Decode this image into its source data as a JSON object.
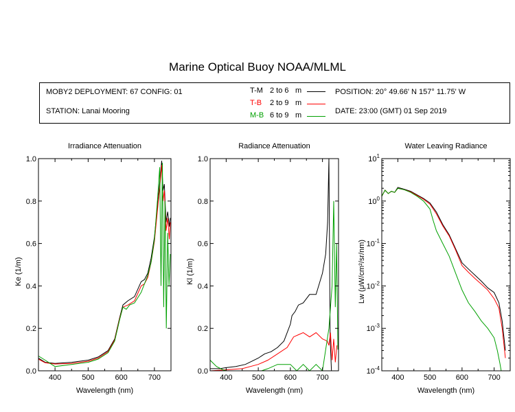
{
  "title": "Marine Optical Buoy NOAA/MLML",
  "info": {
    "deployment": "MOBY2 DEPLOYMENT: 67 CONFIG: 01",
    "station": "STATION: Lanai Mooring",
    "position": "POSITION: 20° 49.66' N   157° 11.75' W",
    "date": "DATE: 23:00 (GMT) 01 Sep 2019"
  },
  "legend": [
    {
      "code": "T-M",
      "range": "2 to 6",
      "unit": "m",
      "color": "#000000"
    },
    {
      "code": "T-B",
      "range": "2 to 9",
      "unit": "m",
      "color": "#ff0000"
    },
    {
      "code": "M-B",
      "range": "6 to 9",
      "unit": "m",
      "color": "#00a000"
    }
  ],
  "chart_data": [
    {
      "type": "line",
      "title": "Irradiance Attenuation",
      "xlabel": "Wavelength (nm)",
      "ylabel": "Ke  (1/m)",
      "xlim": [
        350,
        750
      ],
      "ylim": [
        0,
        1.0
      ],
      "x_ticks": [
        400,
        500,
        600,
        700
      ],
      "y_ticks": [
        "0.0",
        "0.2",
        "0.4",
        "0.6",
        "0.8",
        "1.0"
      ],
      "series": [
        {
          "name": "T-M",
          "color": "#000000",
          "x": [
            350,
            370,
            400,
            450,
            500,
            530,
            560,
            580,
            595,
            605,
            620,
            640,
            660,
            670,
            680,
            690,
            700,
            710,
            718,
            722,
            726,
            730,
            735,
            740,
            745,
            748
          ],
          "y": [
            0.06,
            0.04,
            0.035,
            0.04,
            0.05,
            0.065,
            0.095,
            0.15,
            0.25,
            0.31,
            0.33,
            0.35,
            0.42,
            0.43,
            0.46,
            0.53,
            0.63,
            0.79,
            0.92,
            0.99,
            0.85,
            0.88,
            0.7,
            0.75,
            0.68,
            0.72
          ]
        },
        {
          "name": "T-B",
          "color": "#ff0000",
          "x": [
            350,
            370,
            400,
            450,
            500,
            530,
            560,
            580,
            595,
            605,
            620,
            640,
            660,
            670,
            680,
            690,
            700,
            710,
            718,
            722,
            726,
            730,
            735,
            740,
            745,
            748
          ],
          "y": [
            0.055,
            0.038,
            0.032,
            0.035,
            0.045,
            0.06,
            0.09,
            0.145,
            0.245,
            0.3,
            0.31,
            0.33,
            0.4,
            0.41,
            0.44,
            0.51,
            0.61,
            0.77,
            0.9,
            0.97,
            0.8,
            0.85,
            0.66,
            0.72,
            0.62,
            0.7
          ]
        },
        {
          "name": "M-B",
          "color": "#00a000",
          "x": [
            350,
            370,
            400,
            450,
            500,
            530,
            560,
            580,
            595,
            605,
            615,
            625,
            640,
            660,
            670,
            680,
            690,
            700,
            710,
            716,
            720,
            724,
            728,
            732,
            736,
            740,
            744,
            748
          ],
          "y": [
            0.07,
            0.05,
            0.02,
            0.03,
            0.04,
            0.055,
            0.085,
            0.14,
            0.24,
            0.3,
            0.29,
            0.31,
            0.32,
            0.37,
            0.41,
            0.45,
            0.51,
            0.62,
            0.82,
            0.96,
            0.4,
            0.98,
            0.3,
            0.8,
            0.2,
            0.65,
            0.4,
            0.55
          ]
        }
      ]
    },
    {
      "type": "line",
      "title": "Radiance Attenuation",
      "xlabel": "Wavelength (nm)",
      "ylabel": "Kl  (1/m)",
      "xlim": [
        350,
        750
      ],
      "ylim": [
        0,
        1.0
      ],
      "x_ticks": [
        400,
        500,
        600,
        700
      ],
      "y_ticks": [
        "0.0",
        "0.2",
        "0.4",
        "0.6",
        "0.8",
        "1.0"
      ],
      "series": [
        {
          "name": "T-M",
          "color": "#000000",
          "x": [
            350,
            380,
            400,
            430,
            460,
            480,
            500,
            520,
            540,
            560,
            580,
            600,
            605,
            615,
            625,
            640,
            660,
            680,
            700,
            710,
            716,
            720,
            724,
            728
          ],
          "y": [
            0.01,
            0.01,
            0.015,
            0.02,
            0.03,
            0.045,
            0.06,
            0.08,
            0.09,
            0.11,
            0.14,
            0.22,
            0.26,
            0.28,
            0.31,
            0.32,
            0.36,
            0.36,
            0.46,
            0.55,
            0.7,
            1.0,
            0.15,
            0.0
          ]
        },
        {
          "name": "T-B",
          "color": "#ff0000",
          "x": [
            350,
            400,
            450,
            500,
            530,
            560,
            590,
            610,
            625,
            640,
            660,
            680,
            700,
            715,
            720,
            725,
            730,
            735,
            740,
            745
          ],
          "y": [
            0.0,
            0.005,
            0.01,
            0.03,
            0.05,
            0.08,
            0.11,
            0.16,
            0.17,
            0.18,
            0.16,
            0.18,
            0.15,
            0.14,
            0.12,
            0.18,
            0.05,
            0.15,
            0.04,
            0.12
          ]
        },
        {
          "name": "M-B",
          "color": "#00a000",
          "x": [
            350,
            370,
            390,
            400,
            510,
            530,
            560,
            600,
            620,
            640,
            660,
            680,
            700,
            720,
            730,
            735,
            740,
            744,
            748
          ],
          "y": [
            0.05,
            0.02,
            0.005,
            0.0,
            0.0,
            0.01,
            0.03,
            0.03,
            0.0,
            0.03,
            0.0,
            0.03,
            0.0,
            0.2,
            0.4,
            0.8,
            0.3,
            0.6,
            0.1
          ]
        }
      ]
    },
    {
      "type": "line",
      "title": "Water Leaving Radiance",
      "xlabel": "Wavelength (nm)",
      "ylabel": "Lw  (μW/cm²/sr/nm)",
      "xscale": "log-y",
      "xlim": [
        350,
        750
      ],
      "ylim": [
        0.0001,
        10
      ],
      "x_ticks": [
        400,
        500,
        600,
        700
      ],
      "y_ticks": [
        {
          "base": "10",
          "exp": "1"
        },
        {
          "base": "10",
          "exp": "0"
        },
        {
          "base": "10",
          "exp": "-1"
        },
        {
          "base": "10",
          "exp": "-2"
        },
        {
          "base": "10",
          "exp": "-3"
        },
        {
          "base": "10",
          "exp": "-4"
        }
      ],
      "series": [
        {
          "name": "T-M",
          "color": "#000000",
          "x": [
            350,
            360,
            370,
            380,
            390,
            400,
            420,
            440,
            460,
            480,
            500,
            520,
            540,
            560,
            580,
            600,
            620,
            640,
            660,
            680,
            700,
            715,
            725,
            735
          ],
          "y": [
            1.3,
            1.8,
            1.5,
            1.7,
            1.6,
            2.1,
            1.9,
            1.7,
            1.4,
            1.15,
            0.9,
            0.55,
            0.28,
            0.16,
            0.075,
            0.035,
            0.025,
            0.018,
            0.013,
            0.009,
            0.007,
            0.004,
            0.0015,
            0.0003
          ]
        },
        {
          "name": "T-B",
          "color": "#ff0000",
          "x": [
            350,
            360,
            370,
            380,
            390,
            400,
            420,
            440,
            460,
            480,
            500,
            520,
            540,
            560,
            580,
            600,
            620,
            640,
            660,
            680,
            700,
            715,
            725,
            735
          ],
          "y": [
            1.3,
            1.8,
            1.5,
            1.7,
            1.6,
            2.0,
            1.85,
            1.65,
            1.35,
            1.1,
            0.85,
            0.5,
            0.26,
            0.15,
            0.07,
            0.03,
            0.021,
            0.015,
            0.011,
            0.008,
            0.005,
            0.003,
            0.001,
            0.0002
          ]
        },
        {
          "name": "M-B",
          "color": "#00a000",
          "x": [
            350,
            360,
            370,
            380,
            390,
            400,
            420,
            440,
            460,
            480,
            500,
            510,
            520,
            540,
            560,
            580,
            600,
            620,
            640,
            660,
            680,
            700,
            710,
            718,
            722
          ],
          "y": [
            1.3,
            1.8,
            1.5,
            1.7,
            1.6,
            2.0,
            1.85,
            1.6,
            1.3,
            1.0,
            0.65,
            0.35,
            0.2,
            0.1,
            0.05,
            0.02,
            0.008,
            0.004,
            0.0025,
            0.0015,
            0.001,
            0.0006,
            0.0003,
            0.00015,
            0.0001
          ]
        }
      ]
    }
  ]
}
